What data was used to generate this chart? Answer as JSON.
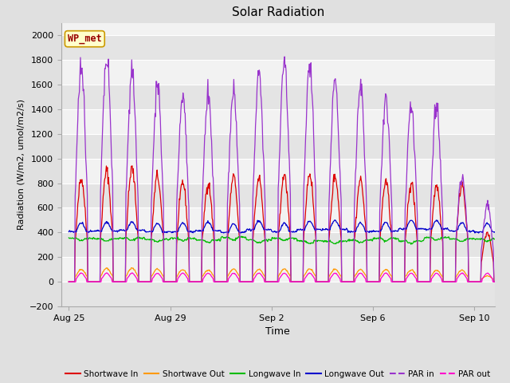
{
  "title": "Solar Radiation",
  "xlabel": "Time",
  "ylabel": "Radiation (W/m2, umol/m2/s)",
  "ylim": [
    -200,
    2100
  ],
  "yticks": [
    -200,
    0,
    200,
    400,
    600,
    800,
    1000,
    1200,
    1400,
    1600,
    1800,
    2000
  ],
  "xtick_labels": [
    "Aug 25",
    "Aug 29",
    "Sep 2",
    "Sep 6",
    "Sep 10"
  ],
  "xtick_positions": [
    0,
    4,
    8,
    12,
    16
  ],
  "xlim_left": -0.3,
  "xlim_right": 16.8,
  "fig_bg_color": "#e0e0e0",
  "plot_bg_color": "#f2f2f2",
  "alt_band_color": "#e4e4e4",
  "grid_color": "#ffffff",
  "legend_entries": [
    "Shortwave In",
    "Shortwave Out",
    "Longwave In",
    "Longwave Out",
    "PAR in",
    "PAR out"
  ],
  "colors": {
    "shortwave_in": "#dd0000",
    "shortwave_out": "#ff9900",
    "longwave_in": "#00bb00",
    "longwave_out": "#0000cc",
    "par_in": "#9933cc",
    "par_out": "#ff00cc"
  },
  "annotation_text": "WP_met",
  "annotation_color": "#990000",
  "annotation_bg": "#ffffcc",
  "annotation_border": "#cc9900",
  "n_days": 17,
  "points_per_day": 48,
  "sw_in_peaks": [
    840,
    900,
    920,
    860,
    810,
    800,
    850,
    840,
    870,
    880,
    860,
    830,
    820,
    800,
    780,
    800,
    400
  ],
  "par_in_peaks": [
    1740,
    1860,
    1700,
    1600,
    1520,
    1530,
    1550,
    1700,
    1780,
    1780,
    1650,
    1600,
    1490,
    1430,
    1430,
    860,
    630
  ]
}
